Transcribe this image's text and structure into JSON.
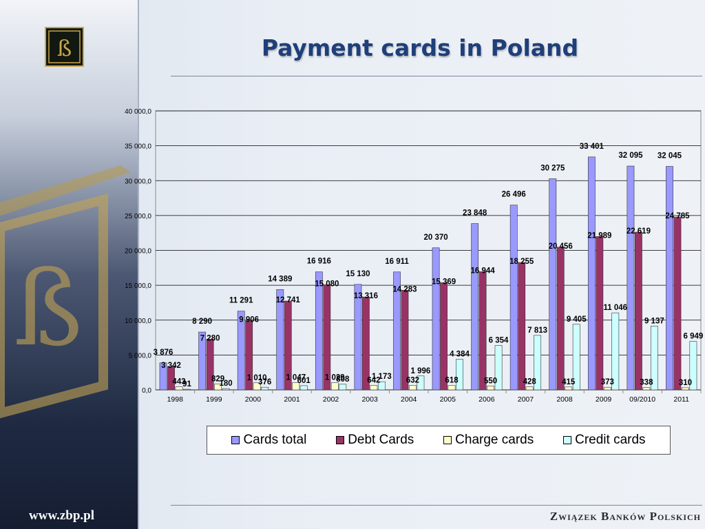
{
  "slide": {
    "title": "Payment cards in Poland",
    "footer_url": "www.zbp.pl",
    "footer_brand": "Związek Banków Polskich"
  },
  "chart_data": {
    "type": "bar",
    "categories": [
      "1998",
      "1999",
      "2000",
      "2001",
      "2002",
      "2003",
      "2004",
      "2005",
      "2006",
      "2007",
      "2008",
      "2009",
      "09/2010",
      "2011"
    ],
    "ylim": [
      0,
      40000
    ],
    "yticks": [
      "0,0",
      "5 000,0",
      "10 000,0",
      "15 000,0",
      "20 000,0",
      "25 000,0",
      "30 000,0",
      "35 000,0",
      "40 000,0"
    ],
    "grid": true,
    "legend_position": "bottom",
    "series": [
      {
        "name": "Cards total",
        "color": "#9999ff",
        "values": [
          3876,
          8290,
          11291,
          14389,
          16916,
          15130,
          16911,
          20370,
          23848,
          26496,
          30275,
          33401,
          32095,
          32045
        ],
        "labels": [
          "3 876",
          "8 290",
          "11 291",
          "14 389",
          "16 916",
          "15 130",
          "16 911",
          "20 370",
          "23 848",
          "26 496",
          "30 275",
          "33 401",
          "32 095",
          "32 045"
        ]
      },
      {
        "name": "Debt Cards",
        "color": "#993366",
        "values": [
          3342,
          7280,
          9906,
          12741,
          15080,
          13316,
          14283,
          15369,
          16944,
          18255,
          20456,
          21989,
          22619,
          24785
        ],
        "labels": [
          "3 342",
          "7 280",
          "9 906",
          "12 741",
          "15 080",
          "13 316",
          "14 283",
          "15 369",
          "16 944",
          "18 255",
          "20 456",
          "21 989",
          "22 619",
          "24 785"
        ]
      },
      {
        "name": "Charge cards",
        "color": "#ffffcc",
        "values": [
          443,
          829,
          1010,
          1047,
          1029,
          642,
          632,
          618,
          550,
          428,
          415,
          373,
          338,
          310
        ],
        "labels": [
          "443",
          "829",
          "1 010",
          "1 047",
          "1 029",
          "642",
          "632",
          "618",
          "550",
          "428",
          "415",
          "373",
          "338",
          "310"
        ]
      },
      {
        "name": "Credit cards",
        "color": "#ccffff",
        "values": [
          91,
          180,
          376,
          601,
          808,
          1173,
          1996,
          4384,
          6354,
          7813,
          9405,
          11046,
          9137,
          6949
        ],
        "labels": [
          "91",
          "180",
          "376",
          "601",
          "808",
          "1 173",
          "1 996",
          "4 384",
          "6 354",
          "7 813",
          "9 405",
          "11 046",
          "9 137",
          "6 949"
        ]
      }
    ]
  }
}
